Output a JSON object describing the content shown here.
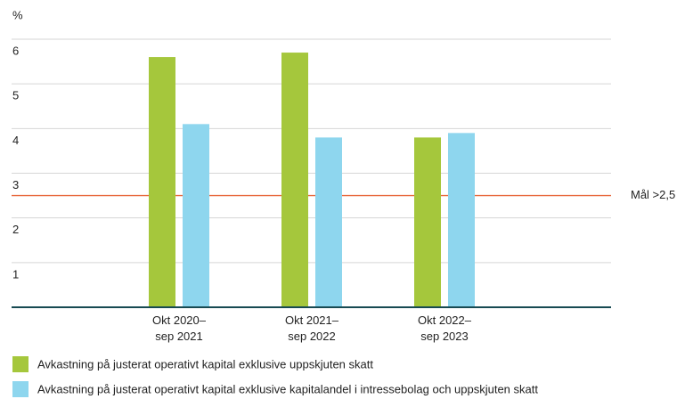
{
  "chart_data": {
    "type": "bar",
    "y_label": "%",
    "categories": [
      "Okt 2020–\nsep 2021",
      "Okt 2021–\nsep 2022",
      "Okt 2022–\nsep 2023"
    ],
    "series": [
      {
        "name": "Avkastning på justerat operativt kapital exklusive uppskjuten skatt",
        "color": "#a5c73c",
        "values": [
          5.6,
          5.7,
          3.8
        ]
      },
      {
        "name": "Avkastning på justerat operativt kapital exklusive kapitalandel i intressebolag och uppskjuten skatt",
        "color": "#8ed6ee",
        "values": [
          4.1,
          3.8,
          3.9
        ]
      }
    ],
    "ylim": [
      0,
      6
    ],
    "yticks": [
      1,
      2,
      3,
      4,
      5,
      6
    ],
    "grid": true,
    "target": {
      "value": 2.5,
      "label": "Mål >2,5",
      "color": "#e8693e"
    },
    "legend": "bottom"
  }
}
